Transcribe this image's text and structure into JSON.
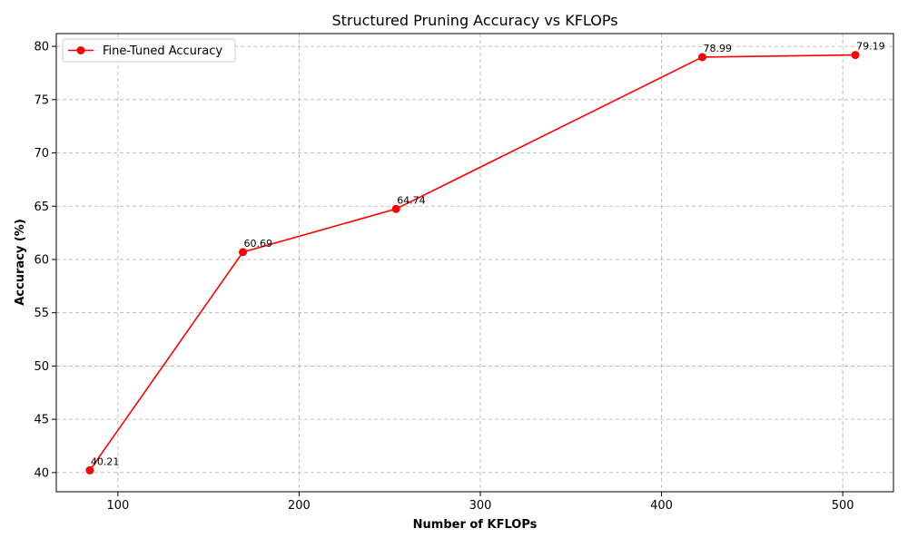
{
  "chart_data": {
    "type": "line",
    "title": "Structured Pruning Accuracy vs KFLOPs",
    "xlabel": "Number of KFLOPs",
    "ylabel": "Accuracy (%)",
    "xlim": [
      66,
      528
    ],
    "ylim": [
      38.2,
      81.2
    ],
    "xticks": [
      100,
      200,
      300,
      400,
      500
    ],
    "yticks": [
      40,
      45,
      50,
      55,
      60,
      65,
      70,
      75,
      80
    ],
    "grid": true,
    "grid_style": "dashed",
    "legend_position": "top-left",
    "series": [
      {
        "name": "Fine-Tuned Accuracy",
        "color": "#ff0000",
        "marker": "circle",
        "x": [
          84.5,
          169,
          253.5,
          422.5,
          507
        ],
        "y": [
          40.21,
          60.69,
          64.74,
          78.99,
          79.19
        ],
        "labels": [
          "40.21",
          "60.69",
          "64.74",
          "78.99",
          "79.19"
        ]
      }
    ]
  }
}
